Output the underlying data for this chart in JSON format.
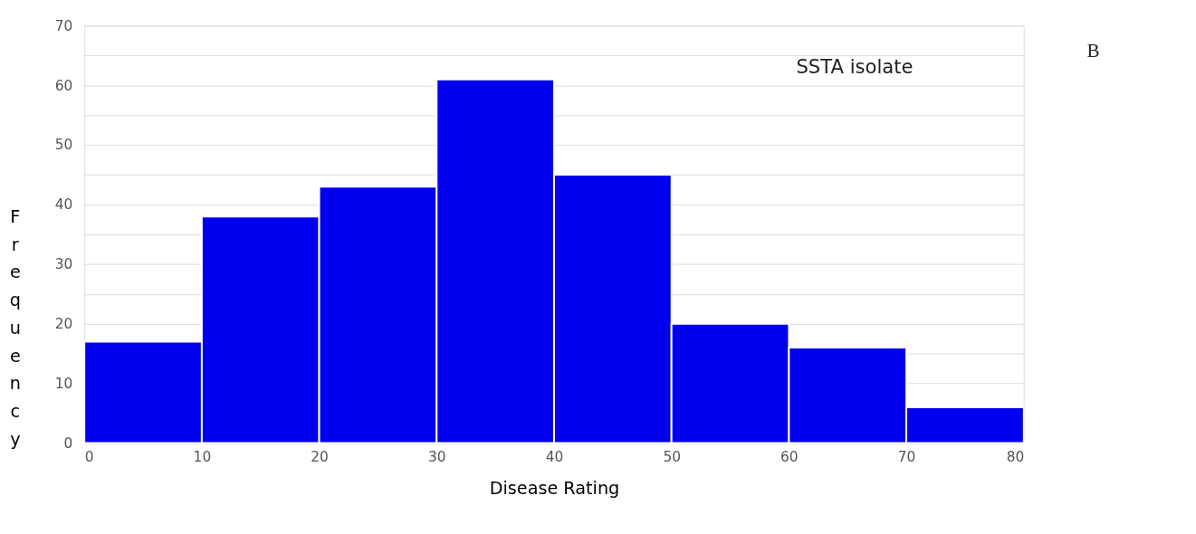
{
  "chart_data": {
    "type": "histogram",
    "bins": [
      0,
      10,
      20,
      30,
      40,
      50,
      60,
      70,
      80
    ],
    "values": [
      17,
      38,
      43,
      61,
      45,
      20,
      16,
      6
    ],
    "color": "#0000ee",
    "xlabel": "Disease Rating",
    "ylabel": "Frequency",
    "annotations": [
      "SSTA isolate",
      "B"
    ],
    "xlim": [
      0,
      80
    ],
    "xticks": [
      0,
      10,
      20,
      30,
      40,
      50,
      60,
      70,
      80
    ],
    "ylim": [
      0,
      70
    ],
    "yticks": [
      0,
      10,
      {
        "value": 15,
        "label": null
      },
      20,
      {
        "value": 25,
        "label": null
      },
      30,
      {
        "value": 35,
        "label": null
      },
      40,
      {
        "value": 45,
        "label": null
      },
      50,
      {
        "value": 55,
        "label": null
      },
      60,
      {
        "value": 65,
        "label": null
      },
      70
    ],
    "grid": "y"
  }
}
